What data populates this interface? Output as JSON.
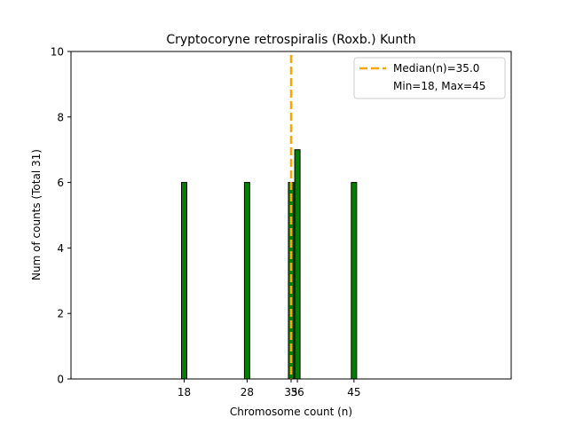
{
  "chart_data": {
    "type": "bar",
    "title": "Cryptocoryne retrospiralis (Roxb.) Kunth",
    "xlabel": "Chromosome count (n)",
    "ylabel": "Num of counts     (Total 31)",
    "bars": [
      {
        "x": 18,
        "count": 6
      },
      {
        "x": 28,
        "count": 6
      },
      {
        "x": 35,
        "count": 6
      },
      {
        "x": 36,
        "count": 7
      },
      {
        "x": 45,
        "count": 6
      }
    ],
    "x_ticks": [
      18,
      28,
      35,
      36,
      45
    ],
    "y_ticks": [
      0,
      2,
      4,
      6,
      8,
      10
    ],
    "xlim": [
      0,
      70
    ],
    "ylim": [
      0,
      10
    ],
    "median": 35.0,
    "legend": {
      "position": "top-right",
      "entries": [
        "Median(n)=35.0",
        "Min=18, Max=45"
      ]
    },
    "colors": {
      "bar": "#008000",
      "bar_edge": "#000000",
      "median_line": "#FFA500"
    },
    "grid": false
  }
}
